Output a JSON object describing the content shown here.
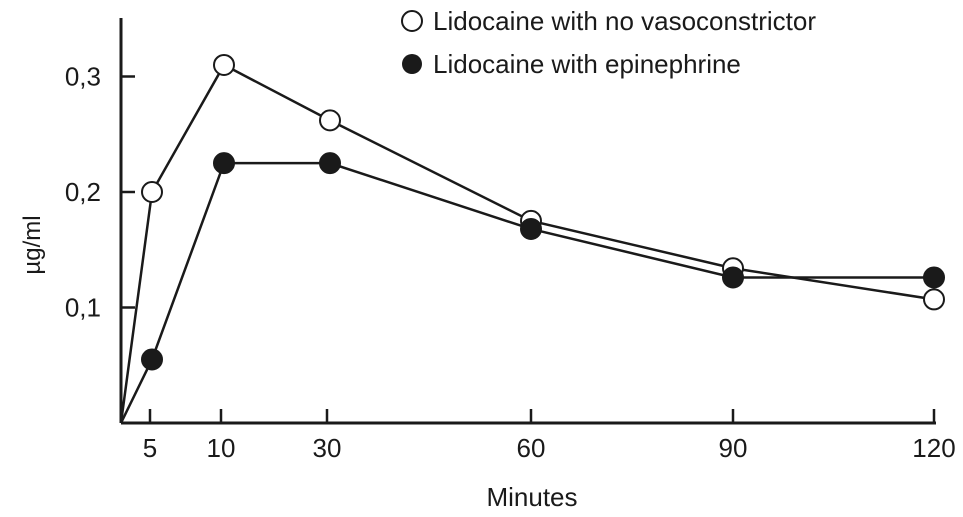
{
  "chart_data": {
    "type": "line",
    "title": "",
    "xlabel": "Minutes",
    "ylabel": "µg/ml",
    "x_ticks": [
      5,
      10,
      30,
      60,
      90,
      120
    ],
    "x_tick_labels": [
      "5",
      "10",
      "30",
      "60",
      "90",
      "120"
    ],
    "y_ticks": [
      0.1,
      0.2,
      0.3
    ],
    "y_tick_labels": [
      "0,1",
      "0,2",
      "0,3"
    ],
    "ylim": [
      0,
      0.35
    ],
    "xlim": [
      0,
      120
    ],
    "grid": false,
    "legend_position": "top-right",
    "series": [
      {
        "name": "Lidocaine with no vasoconstrictor",
        "marker": "open-circle",
        "x": [
          0,
          5,
          10,
          30,
          60,
          90,
          120
        ],
        "y": [
          0,
          0.2,
          0.31,
          0.262,
          0.175,
          0.134,
          0.107
        ]
      },
      {
        "name": "Lidocaine with epinephrine",
        "marker": "filled-circle",
        "x": [
          0,
          5,
          10,
          30,
          60,
          90,
          120
        ],
        "y": [
          0,
          0.055,
          0.225,
          0.225,
          0.168,
          0.126,
          0.126
        ]
      }
    ]
  },
  "colors": {
    "line": "#1a1a1a",
    "open_fill": "#ffffff",
    "filled_fill": "#1a1a1a"
  }
}
